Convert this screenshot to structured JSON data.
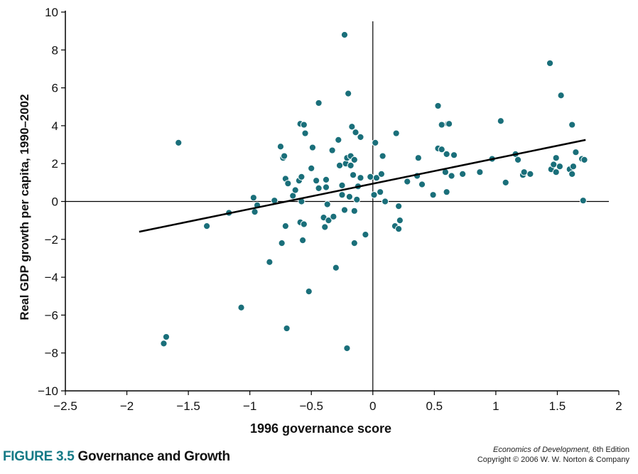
{
  "figure": {
    "number": "FIGURE 3.5",
    "title": "Governance and Growth"
  },
  "credit": {
    "book": "Economics of Development,",
    "edition": " 6th Edition",
    "copyright": "Copyright © 2006 W. W. Norton & Company"
  },
  "colors": {
    "points": "#1a6f7a",
    "caption_accent": "#157a86",
    "line": "#000000"
  },
  "chart_data": {
    "type": "scatter",
    "xlabel": "1996 governance score",
    "ylabel": "Real GDP growth per capita, 1990–2002",
    "xlim": [
      -2.5,
      2
    ],
    "ylim": [
      -10,
      10
    ],
    "x_ticks": [
      -2.5,
      -2,
      -1.5,
      -1,
      -0.5,
      0,
      0.5,
      1,
      1.5,
      2
    ],
    "x_tick_labels": [
      "−2.5",
      "−2",
      "−1.5",
      "−1",
      "−0.5",
      "0",
      "0.5",
      "1",
      "1.5",
      "2"
    ],
    "y_ticks": [
      -10,
      -8,
      -6,
      -4,
      -2,
      0,
      2,
      4,
      6,
      8,
      10
    ],
    "y_tick_labels": [
      "−10",
      "−8",
      "−6",
      "−4",
      "−2",
      "0",
      "2",
      "4",
      "6",
      "8",
      "10"
    ],
    "grid": false,
    "zero_lines": true,
    "trend_line": {
      "x": [
        -1.9,
        1.73
      ],
      "y": [
        -1.6,
        3.25
      ]
    },
    "points": [
      [
        -1.7,
        -7.5
      ],
      [
        -1.68,
        -7.15
      ],
      [
        -1.58,
        3.1
      ],
      [
        -1.35,
        -1.3
      ],
      [
        -1.17,
        -0.6
      ],
      [
        -1.07,
        -5.6
      ],
      [
        -0.97,
        0.2
      ],
      [
        -0.96,
        -0.55
      ],
      [
        -0.94,
        -0.2
      ],
      [
        -0.84,
        -3.2
      ],
      [
        -0.8,
        0.05
      ],
      [
        -0.75,
        2.9
      ],
      [
        -0.74,
        -2.2
      ],
      [
        -0.73,
        2.3
      ],
      [
        -0.72,
        2.4
      ],
      [
        -0.71,
        1.2
      ],
      [
        -0.71,
        -1.3
      ],
      [
        -0.7,
        -6.7
      ],
      [
        -0.69,
        0.95
      ],
      [
        -0.65,
        0.3
      ],
      [
        -0.63,
        0.6
      ],
      [
        -0.6,
        1.1
      ],
      [
        -0.59,
        4.1
      ],
      [
        -0.59,
        -1.1
      ],
      [
        -0.58,
        1.3
      ],
      [
        -0.58,
        0.0
      ],
      [
        -0.57,
        -2.05
      ],
      [
        -0.56,
        4.05
      ],
      [
        -0.56,
        -1.2
      ],
      [
        -0.55,
        3.6
      ],
      [
        -0.52,
        -4.75
      ],
      [
        -0.5,
        1.75
      ],
      [
        -0.49,
        2.85
      ],
      [
        -0.46,
        1.1
      ],
      [
        -0.44,
        5.2
      ],
      [
        -0.44,
        0.7
      ],
      [
        -0.4,
        -0.85
      ],
      [
        -0.39,
        -1.35
      ],
      [
        -0.38,
        0.75
      ],
      [
        -0.38,
        1.15
      ],
      [
        -0.37,
        -0.15
      ],
      [
        -0.36,
        -1.0
      ],
      [
        -0.33,
        2.7
      ],
      [
        -0.32,
        -0.8
      ],
      [
        -0.3,
        -3.5
      ],
      [
        -0.28,
        3.25
      ],
      [
        -0.27,
        1.9
      ],
      [
        -0.25,
        0.85
      ],
      [
        -0.25,
        0.35
      ],
      [
        -0.23,
        8.8
      ],
      [
        -0.23,
        -0.45
      ],
      [
        -0.22,
        2.0
      ],
      [
        -0.21,
        -7.75
      ],
      [
        -0.21,
        2.3
      ],
      [
        -0.2,
        5.7
      ],
      [
        -0.19,
        0.25
      ],
      [
        -0.18,
        2.4
      ],
      [
        -0.18,
        1.9
      ],
      [
        -0.17,
        3.95
      ],
      [
        -0.16,
        1.4
      ],
      [
        -0.15,
        -2.2
      ],
      [
        -0.15,
        2.2
      ],
      [
        -0.15,
        -0.5
      ],
      [
        -0.14,
        3.65
      ],
      [
        -0.13,
        0.1
      ],
      [
        -0.12,
        0.8
      ],
      [
        -0.1,
        3.4
      ],
      [
        -0.1,
        1.25
      ],
      [
        -0.06,
        -1.75
      ],
      [
        -0.02,
        1.3
      ],
      [
        0.01,
        0.35
      ],
      [
        0.02,
        3.1
      ],
      [
        0.03,
        1.25
      ],
      [
        0.06,
        0.5
      ],
      [
        0.07,
        1.45
      ],
      [
        0.08,
        2.4
      ],
      [
        0.1,
        0.0
      ],
      [
        0.18,
        -1.3
      ],
      [
        0.19,
        3.6
      ],
      [
        0.21,
        -0.25
      ],
      [
        0.21,
        -1.45
      ],
      [
        0.22,
        -1.0
      ],
      [
        0.28,
        1.05
      ],
      [
        0.36,
        1.35
      ],
      [
        0.37,
        2.3
      ],
      [
        0.4,
        0.9
      ],
      [
        0.49,
        0.35
      ],
      [
        0.53,
        5.05
      ],
      [
        0.53,
        2.8
      ],
      [
        0.56,
        2.75
      ],
      [
        0.56,
        4.05
      ],
      [
        0.59,
        1.55
      ],
      [
        0.6,
        0.5
      ],
      [
        0.6,
        2.5
      ],
      [
        0.61,
        4.1
      ],
      [
        0.62,
        4.1
      ],
      [
        0.64,
        1.35
      ],
      [
        0.66,
        2.45
      ],
      [
        0.73,
        1.45
      ],
      [
        0.87,
        1.55
      ],
      [
        0.97,
        2.25
      ],
      [
        1.04,
        4.25
      ],
      [
        1.08,
        1.0
      ],
      [
        1.16,
        2.5
      ],
      [
        1.18,
        2.2
      ],
      [
        1.22,
        1.4
      ],
      [
        1.23,
        1.55
      ],
      [
        1.28,
        1.45
      ],
      [
        1.44,
        7.3
      ],
      [
        1.45,
        1.7
      ],
      [
        1.47,
        1.95
      ],
      [
        1.49,
        2.3
      ],
      [
        1.49,
        1.55
      ],
      [
        1.52,
        1.85
      ],
      [
        1.53,
        5.6
      ],
      [
        1.6,
        1.7
      ],
      [
        1.62,
        4.05
      ],
      [
        1.62,
        1.45
      ],
      [
        1.63,
        1.85
      ],
      [
        1.65,
        2.6
      ],
      [
        1.7,
        2.25
      ],
      [
        1.71,
        0.05
      ],
      [
        1.72,
        2.2
      ]
    ]
  }
}
